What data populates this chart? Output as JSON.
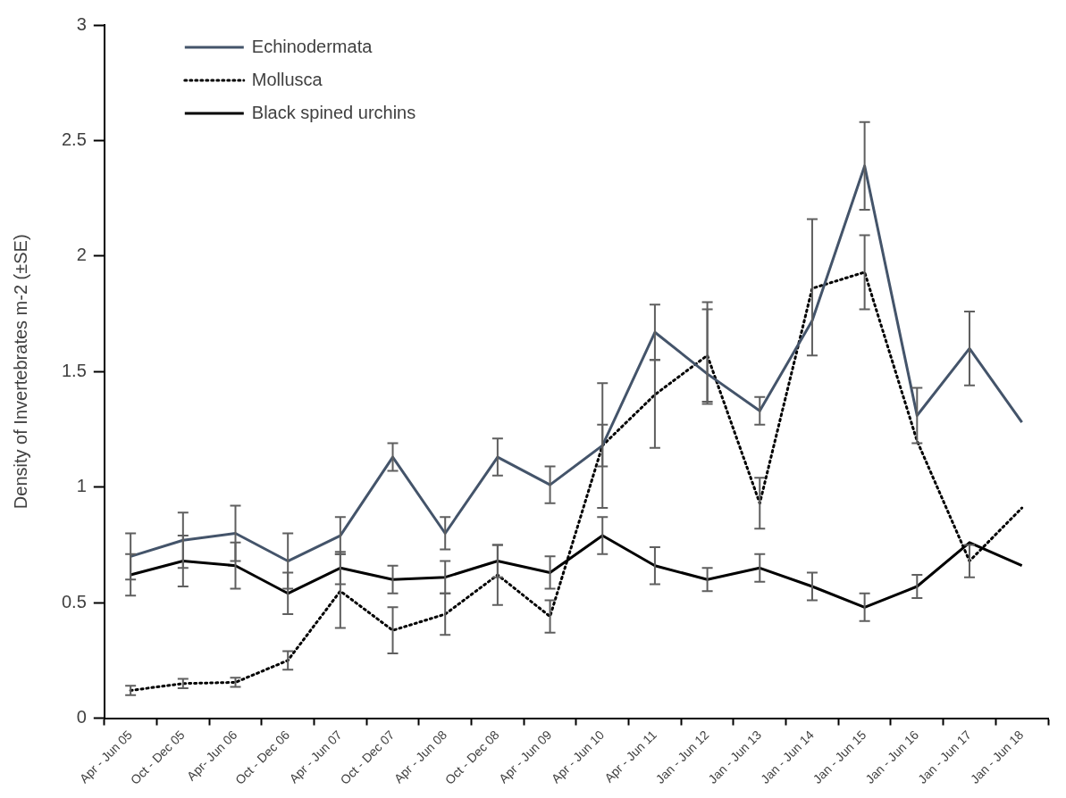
{
  "chart_data": {
    "type": "line",
    "ylabel": "Density of Invertebrates m-2 (±SE)",
    "categories": [
      "Apr - Jun 05",
      "Oct - Dec 05",
      "Apr- Jun 06",
      "Oct - Dec 06",
      "Apr - Jun 07",
      "Oct - Dec 07",
      "Apr - Jun 08",
      "Oct - Dec 08",
      "Apr - Jun 09",
      "Apr - Jun 10",
      "Apr - Jun 11",
      "Jan - Jun 12",
      "Jan - Jun 13",
      "Jan - Jun 14",
      "Jan - Jun 15",
      "Jan - Jun 16",
      "Jan - Jun 17",
      "Jan - Jun 18"
    ],
    "series": [
      {
        "name": "Echinodermata",
        "color": "#44546a",
        "line_style": "solid",
        "values": [
          0.7,
          0.77,
          0.8,
          0.68,
          0.79,
          1.13,
          0.8,
          1.13,
          1.01,
          1.18,
          1.67,
          1.49,
          1.33,
          1.72,
          2.39,
          1.31,
          1.6,
          1.28
        ],
        "errors": [
          0.1,
          0.12,
          0.12,
          0.12,
          0.08,
          0.06,
          0.07,
          0.08,
          0.08,
          0.27,
          0.12,
          [
            1.36,
            1.8
          ],
          0.06,
          [
            1.57,
            2.16
          ],
          0.19,
          0.12,
          0.16,
          null
        ]
      },
      {
        "name": "Mollusca",
        "color": "#000000",
        "line_style": "dotted",
        "values": [
          0.12,
          0.15,
          0.155,
          0.25,
          0.55,
          0.38,
          0.45,
          0.62,
          0.44,
          1.18,
          1.4,
          1.57,
          0.93,
          1.86,
          1.93,
          1.2,
          0.68,
          0.91
        ],
        "errors": [
          0.02,
          0.02,
          0.02,
          0.04,
          0.16,
          0.1,
          0.09,
          0.13,
          0.07,
          0.09,
          [
            1.17,
            1.55
          ],
          0.2,
          0.11,
          null,
          0.16,
          null,
          0.07,
          null
        ]
      },
      {
        "name": "Black spined urchins",
        "color": "#000000",
        "line_style": "solid",
        "values": [
          0.62,
          0.68,
          0.66,
          0.54,
          0.65,
          0.6,
          0.61,
          0.68,
          0.63,
          0.79,
          0.66,
          0.6,
          0.65,
          0.57,
          0.48,
          0.57,
          0.76,
          0.66
        ],
        "errors": [
          0.09,
          0.11,
          0.1,
          0.09,
          0.07,
          0.06,
          0.07,
          0.07,
          0.07,
          0.08,
          0.08,
          0.05,
          0.06,
          0.06,
          0.06,
          0.05,
          null,
          null
        ]
      }
    ],
    "ylim": [
      0,
      3
    ],
    "yticks": [
      0,
      0.5,
      1,
      1.5,
      2,
      2.5,
      3
    ],
    "grid": false,
    "legend": "top left",
    "marker": "none"
  }
}
